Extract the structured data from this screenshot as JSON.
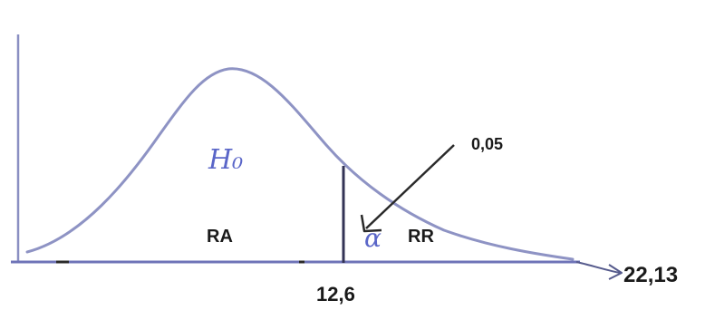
{
  "labels": {
    "hypothesis": "H₀",
    "acceptance_region": "RA",
    "rejection_region": "RR",
    "alpha_symbol": "α",
    "alpha_value": "0,05",
    "critical_value": "12,6",
    "statistic_value": "22,13"
  },
  "colors": {
    "curve": "#8e93c4",
    "axis": "#6f74b8",
    "critical_line": "#333355",
    "arrow": "#2a2a2a",
    "handwriting": "#5a66c8",
    "text": "#1a1a1a"
  }
}
